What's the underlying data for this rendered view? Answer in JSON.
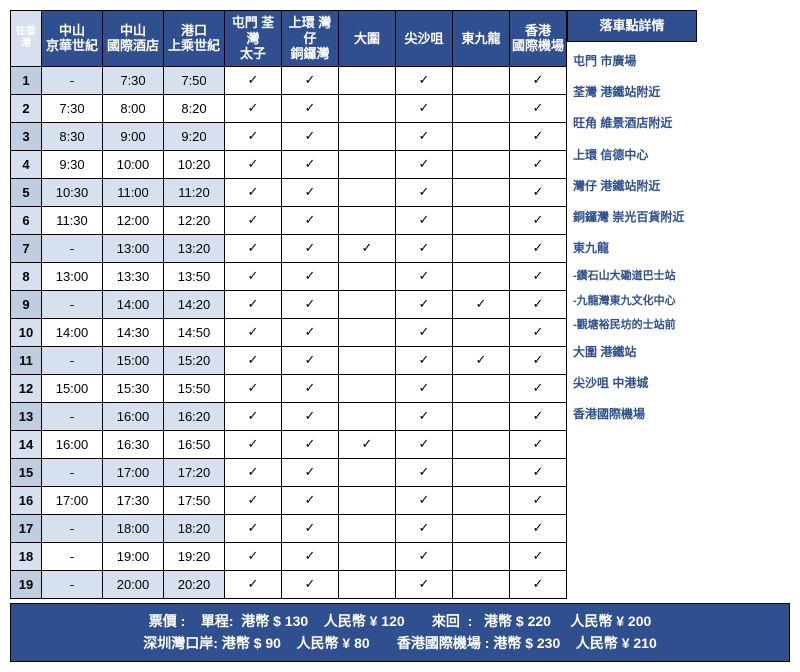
{
  "corner": "往香港",
  "headers": [
    "中山\n京華世紀",
    "中山\n國際酒店",
    "港口\n上乘世紀",
    "屯門 荃灣\n太子",
    "上環 灣仔\n銅鑼灣",
    "大圍",
    "尖沙咀",
    "東九龍",
    "香港\n國際機場"
  ],
  "detail_header": "落車點詳情",
  "rows": [
    {
      "n": "1",
      "t": [
        "-",
        "7:30",
        "7:50"
      ],
      "c": [
        true,
        true,
        false,
        true,
        false,
        true
      ]
    },
    {
      "n": "2",
      "t": [
        "7:30",
        "8:00",
        "8:20"
      ],
      "c": [
        true,
        true,
        false,
        true,
        false,
        true
      ]
    },
    {
      "n": "3",
      "t": [
        "8:30",
        "9:00",
        "9:20"
      ],
      "c": [
        true,
        true,
        false,
        true,
        false,
        true
      ]
    },
    {
      "n": "4",
      "t": [
        "9:30",
        "10:00",
        "10:20"
      ],
      "c": [
        true,
        true,
        false,
        true,
        false,
        true
      ]
    },
    {
      "n": "5",
      "t": [
        "10:30",
        "11:00",
        "11:20"
      ],
      "c": [
        true,
        true,
        false,
        true,
        false,
        true
      ]
    },
    {
      "n": "6",
      "t": [
        "11:30",
        "12:00",
        "12:20"
      ],
      "c": [
        true,
        true,
        false,
        true,
        false,
        true
      ]
    },
    {
      "n": "7",
      "t": [
        "-",
        "13:00",
        "13:20"
      ],
      "c": [
        true,
        true,
        true,
        true,
        false,
        true
      ]
    },
    {
      "n": "8",
      "t": [
        "13:00",
        "13:30",
        "13:50"
      ],
      "c": [
        true,
        true,
        false,
        true,
        false,
        true
      ]
    },
    {
      "n": "9",
      "t": [
        "-",
        "14:00",
        "14:20"
      ],
      "c": [
        true,
        true,
        false,
        true,
        true,
        true
      ]
    },
    {
      "n": "10",
      "t": [
        "14:00",
        "14:30",
        "14:50"
      ],
      "c": [
        true,
        true,
        false,
        true,
        false,
        true
      ]
    },
    {
      "n": "11",
      "t": [
        "-",
        "15:00",
        "15:20"
      ],
      "c": [
        true,
        true,
        false,
        true,
        true,
        true
      ]
    },
    {
      "n": "12",
      "t": [
        "15:00",
        "15:30",
        "15:50"
      ],
      "c": [
        true,
        true,
        false,
        true,
        false,
        true
      ]
    },
    {
      "n": "13",
      "t": [
        "-",
        "16:00",
        "16:20"
      ],
      "c": [
        true,
        true,
        false,
        true,
        false,
        true
      ]
    },
    {
      "n": "14",
      "t": [
        "16:00",
        "16:30",
        "16:50"
      ],
      "c": [
        true,
        true,
        true,
        true,
        false,
        true
      ]
    },
    {
      "n": "15",
      "t": [
        "-",
        "17:00",
        "17:20"
      ],
      "c": [
        true,
        true,
        false,
        true,
        false,
        true
      ]
    },
    {
      "n": "16",
      "t": [
        "17:00",
        "17:30",
        "17:50"
      ],
      "c": [
        true,
        true,
        false,
        true,
        false,
        true
      ]
    },
    {
      "n": "17",
      "t": [
        "-",
        "18:00",
        "18:20"
      ],
      "c": [
        true,
        true,
        false,
        true,
        false,
        true
      ]
    },
    {
      "n": "18",
      "t": [
        "-",
        "19:00",
        "19:20"
      ],
      "c": [
        true,
        true,
        false,
        true,
        false,
        true
      ]
    },
    {
      "n": "19",
      "t": [
        "-",
        "20:00",
        "20:20"
      ],
      "c": [
        true,
        true,
        false,
        true,
        false,
        true
      ]
    }
  ],
  "details": [
    {
      "t": "屯門 市廣場"
    },
    {
      "t": "荃灣 港鐵站附近"
    },
    {
      "t": "旺角 維景酒店附近"
    },
    {
      "t": "上環 信德中心"
    },
    {
      "t": "灣仔 港鐵站附近"
    },
    {
      "t": "銅鑼灣 崇光百貨附近"
    },
    {
      "t": "東九龍"
    },
    {
      "t": "-鑽石山大磡道巴士站",
      "sub": true
    },
    {
      "t": "-九龍灣東九文化中心",
      "sub": true
    },
    {
      "t": "-觀塘裕民坊的士站前",
      "sub": true
    },
    {
      "t": "大圍 港鐵站"
    },
    {
      "t": "尖沙咀 中港城"
    },
    {
      "t": "香港國際機場"
    }
  ],
  "fare": {
    "line1": "票價 :    單程:  港幣 $ 130    人民幣 ¥ 120       來回  :   港幣 $ 220     人民幣 ¥ 200",
    "line2": "深圳灣口岸: 港幣 $ 90    人民幣 ¥ 80       香港國際機場 : 港幣 $ 230    人民幣 ¥ 210"
  },
  "check": "✓",
  "dash": "-",
  "style": {
    "header_bg": "#2f4f8f",
    "header_fg": "#ffffff",
    "alt_bg": "#d6e0ef",
    "border": "#000000",
    "detail_fg": "#2f4f8f"
  }
}
